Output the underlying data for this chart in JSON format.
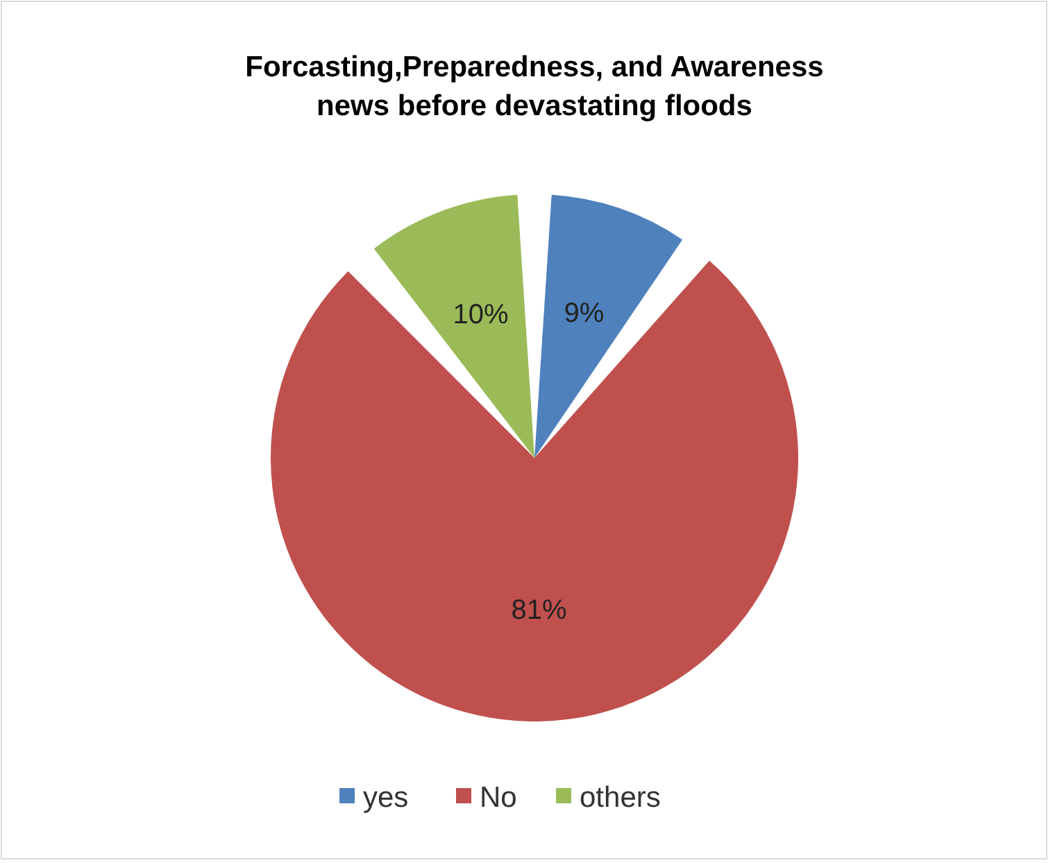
{
  "chart_data": {
    "type": "pie",
    "title": "Forcasting,Preparedness, and Awareness news before devastating floods",
    "categories": [
      "yes",
      "No",
      "others"
    ],
    "values": [
      9,
      81,
      10
    ],
    "colors": [
      "#4f81bd",
      "#c0504d",
      "#9bbb59"
    ],
    "value_labels": [
      "9%",
      "81%",
      "10%"
    ],
    "legend": "bottom"
  }
}
